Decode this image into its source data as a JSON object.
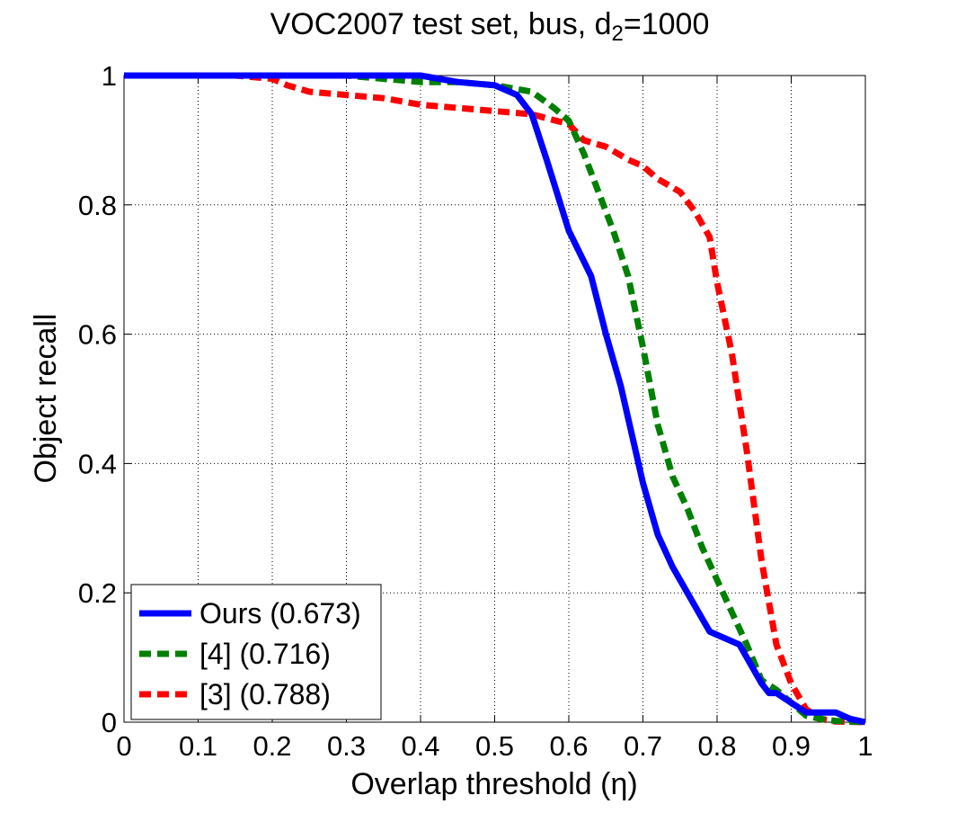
{
  "chart_data": {
    "type": "line",
    "title_main": "VOC2007 test set, bus, d",
    "title_sub": "2",
    "title_tail": "=1000",
    "xlabel": "Overlap threshold (η)",
    "ylabel": "Object recall",
    "xlim": [
      0,
      1
    ],
    "ylim": [
      0,
      1
    ],
    "x_ticks": [
      "0",
      "0.1",
      "0.2",
      "0.3",
      "0.4",
      "0.5",
      "0.6",
      "0.7",
      "0.8",
      "0.9",
      "1"
    ],
    "y_ticks": [
      "0",
      "0.2",
      "0.4",
      "0.6",
      "0.8",
      "1"
    ],
    "grid": true,
    "legend_position": "bottom-left",
    "series": [
      {
        "name": "Ours (0.673)",
        "color": "#0000ff",
        "style": "solid",
        "x": [
          0,
          0.1,
          0.2,
          0.3,
          0.4,
          0.45,
          0.5,
          0.53,
          0.55,
          0.57,
          0.6,
          0.63,
          0.65,
          0.67,
          0.7,
          0.72,
          0.74,
          0.76,
          0.78,
          0.79,
          0.8,
          0.83,
          0.86,
          0.87,
          0.88,
          0.9,
          0.92,
          0.94,
          0.96,
          0.98,
          1.0
        ],
        "y": [
          1,
          1,
          1,
          1,
          1,
          0.99,
          0.985,
          0.97,
          0.94,
          0.87,
          0.76,
          0.69,
          0.6,
          0.52,
          0.37,
          0.29,
          0.24,
          0.2,
          0.16,
          0.14,
          0.135,
          0.12,
          0.06,
          0.045,
          0.045,
          0.03,
          0.015,
          0.015,
          0.015,
          0.005,
          0
        ]
      },
      {
        "name": "[4] (0.716)",
        "color": "#008000",
        "style": "dashed",
        "x": [
          0,
          0.1,
          0.2,
          0.3,
          0.35,
          0.4,
          0.45,
          0.5,
          0.55,
          0.58,
          0.6,
          0.62,
          0.64,
          0.66,
          0.68,
          0.7,
          0.72,
          0.74,
          0.76,
          0.78,
          0.8,
          0.82,
          0.84,
          0.86,
          0.88,
          0.9,
          0.92,
          0.94,
          0.96,
          1.0
        ],
        "y": [
          1,
          1,
          1,
          1,
          0.995,
          0.99,
          0.99,
          0.985,
          0.975,
          0.95,
          0.93,
          0.88,
          0.82,
          0.76,
          0.69,
          0.58,
          0.46,
          0.38,
          0.33,
          0.27,
          0.22,
          0.17,
          0.12,
          0.065,
          0.05,
          0.03,
          0.01,
          0.005,
          0.002,
          0
        ]
      },
      {
        "name": "[3] (0.788)",
        "color": "#ff0000",
        "style": "dashed",
        "x": [
          0,
          0.1,
          0.15,
          0.2,
          0.22,
          0.25,
          0.3,
          0.35,
          0.4,
          0.45,
          0.5,
          0.55,
          0.6,
          0.62,
          0.65,
          0.68,
          0.7,
          0.72,
          0.75,
          0.77,
          0.79,
          0.8,
          0.82,
          0.84,
          0.86,
          0.88,
          0.9,
          0.92,
          0.94,
          0.96,
          1.0
        ],
        "y": [
          1,
          1,
          1,
          0.995,
          0.985,
          0.975,
          0.97,
          0.965,
          0.955,
          0.95,
          0.945,
          0.94,
          0.925,
          0.9,
          0.89,
          0.87,
          0.86,
          0.84,
          0.82,
          0.79,
          0.75,
          0.68,
          0.57,
          0.42,
          0.25,
          0.12,
          0.06,
          0.02,
          0.005,
          0.001,
          0
        ]
      }
    ]
  }
}
